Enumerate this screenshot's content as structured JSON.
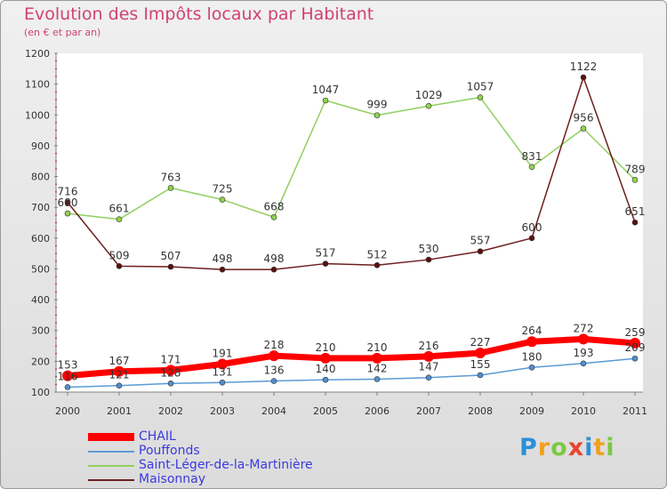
{
  "title": "Evolution des Impôts locaux par Habitant",
  "subtitle": "(en € et par an)",
  "logo_text": "Proxiti",
  "chart_data": {
    "type": "line",
    "categories": [
      "2000",
      "2001",
      "2002",
      "2003",
      "2004",
      "2005",
      "2006",
      "2007",
      "2008",
      "2009",
      "2010",
      "2011"
    ],
    "ylim": [
      100,
      1200
    ],
    "yticks": [
      100,
      200,
      300,
      400,
      500,
      600,
      700,
      800,
      900,
      1000,
      1100,
      1200
    ],
    "grid": false,
    "legend_position": "bottom",
    "series": [
      {
        "name": "CHAIL",
        "color": "#ff0000",
        "values": [
          153,
          167,
          171,
          191,
          218,
          210,
          210,
          216,
          227,
          264,
          272,
          259
        ]
      },
      {
        "name": "Pouffonds",
        "color": "#5b9bd5",
        "values": [
          116,
          121,
          128,
          131,
          136,
          140,
          142,
          147,
          155,
          180,
          193,
          209
        ]
      },
      {
        "name": "Saint-Léger-de-la-Martinière",
        "color": "#90d060",
        "values": [
          680,
          661,
          763,
          725,
          668,
          1047,
          999,
          1029,
          1057,
          831,
          956,
          789
        ]
      },
      {
        "name": "Maisonnay",
        "color": "#6e1e1e",
        "values": [
          716,
          509,
          507,
          498,
          498,
          517,
          512,
          530,
          557,
          600,
          1122,
          651
        ]
      }
    ]
  }
}
